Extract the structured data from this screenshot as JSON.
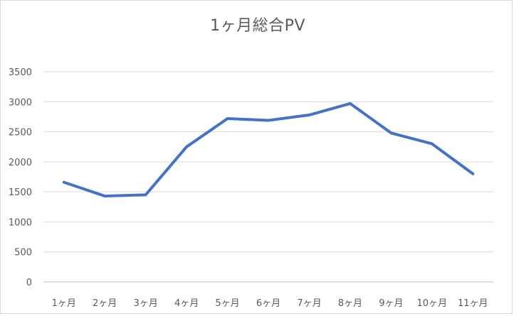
{
  "chart_data": {
    "type": "line",
    "title": "1ヶ月総合PV",
    "categories": [
      "1ヶ月",
      "2ヶ月",
      "3ヶ月",
      "4ヶ月",
      "5ヶ月",
      "6ヶ月",
      "7ヶ月",
      "8ヶ月",
      "9ヶ月",
      "10ヶ月",
      "11ヶ月"
    ],
    "series": [
      {
        "values": [
          1660,
          1430,
          1450,
          2250,
          2720,
          2690,
          2780,
          2970,
          2480,
          2300,
          1800
        ],
        "color": "#4472C4"
      }
    ],
    "ylim": [
      0,
      3500
    ],
    "yticks": [
      0,
      500,
      1000,
      1500,
      2000,
      2500,
      3000,
      3500
    ],
    "xlabel": "",
    "ylabel": "",
    "grid": true,
    "legend": "none"
  }
}
